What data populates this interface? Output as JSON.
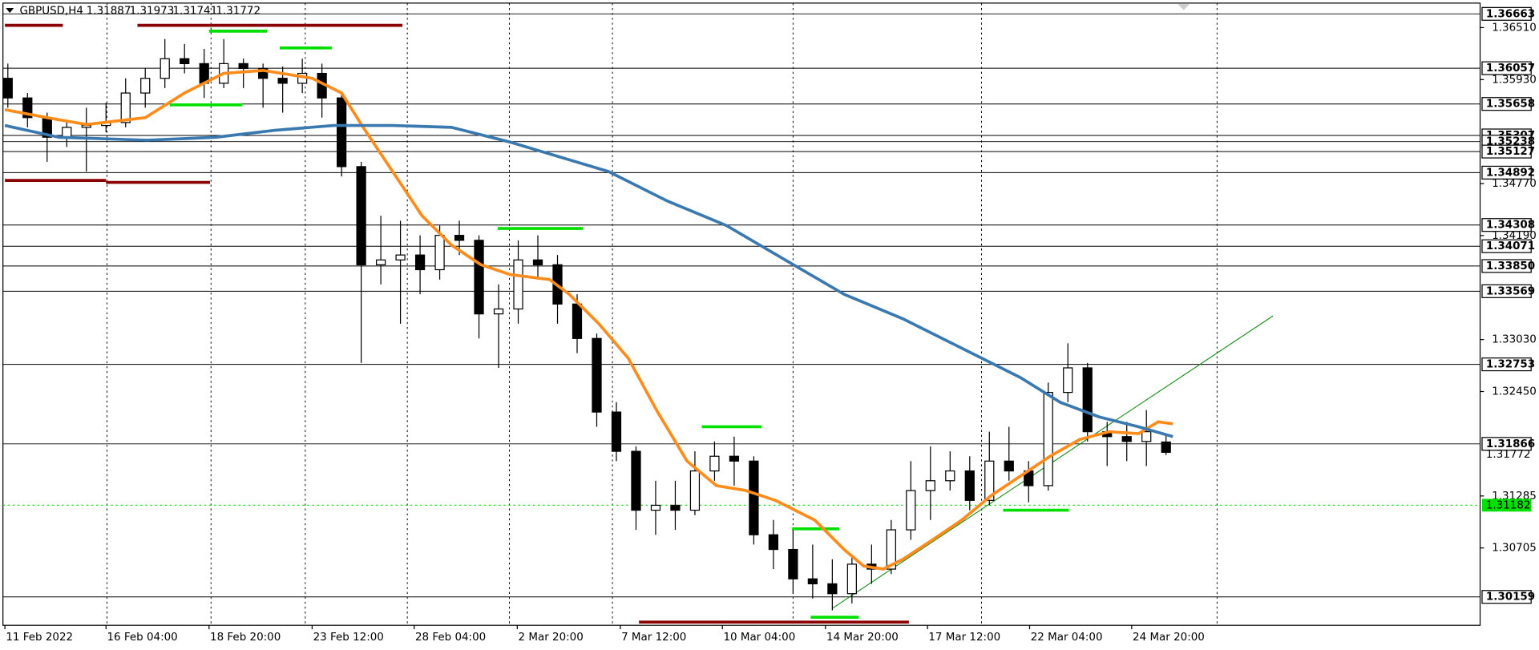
{
  "chart_data": {
    "type": "candlestick",
    "title": "GBPUSD,H4",
    "ohlc": [
      1.31887,
      1.31973,
      1.31741,
      1.31772
    ],
    "up_color": "#ffffff",
    "down_color": "#000000",
    "xlim": [
      -0.4,
      75
    ],
    "ylim": [
      1.29842,
      1.36816
    ],
    "yticks": [
      {
        "value": 1.3651,
        "label": "1.36510"
      },
      {
        "value": 1.3593,
        "label": "1.35930"
      },
      {
        "value": 1.3477,
        "label": "1.34770"
      },
      {
        "value": 1.3419,
        "label": "1.34190"
      },
      {
        "value": 1.3303,
        "label": "1.33030"
      },
      {
        "value": 1.3245,
        "label": "1.32450"
      },
      1.31285,
      1.30705
    ],
    "xticks": [
      {
        "value": -0.15,
        "label": "11 Feb 2022"
      },
      {
        "value": 5,
        "label": "16 Feb 04:00"
      },
      {
        "value": 10.25,
        "label": "18 Feb 20:00"
      },
      {
        "value": 15.5,
        "label": "23 Feb 12:00"
      },
      {
        "value": 20.7,
        "label": "28 Feb 04:00"
      },
      {
        "value": 25.95,
        "label": "2 Mar 20:00"
      },
      {
        "value": 31.2,
        "label": "7 Mar 12:00"
      },
      {
        "value": 36.4,
        "label": "10 Mar 04:00"
      },
      {
        "value": 41.65,
        "label": "14 Mar 20:00"
      },
      {
        "value": 46.85,
        "label": "17 Mar 12:00"
      },
      {
        "value": 52.05,
        "label": "22 Mar 04:00"
      },
      {
        "value": 57.25,
        "label": "24 Mar 20:00"
      }
    ],
    "vgrid": [
      5.05,
      10.35,
      15.15,
      20.35,
      25.55,
      30.8,
      40,
      49.6,
      61.6
    ],
    "candles": {
      "open": [
        1.35944,
        1.35725,
        1.35506,
        1.35287,
        1.35397,
        1.35418,
        1.35451,
        1.3578,
        1.35944,
        1.36163,
        1.36108,
        1.35889,
        1.36108,
        1.36054,
        1.35944,
        1.35889,
        1.35999,
        1.35725,
        1.34959,
        1.33864,
        1.33918,
        1.33973,
        1.33809,
        1.34192,
        1.34137,
        1.33316,
        1.33371,
        1.33918,
        1.33864,
        1.33426,
        1.33042,
        1.32221,
        1.31783,
        1.31126,
        1.31181,
        1.31126,
        1.31564,
        1.31728,
        1.31674,
        1.30852,
        1.30688,
        1.3036,
        1.30305,
        1.30195,
        1.30524,
        1.30469,
        1.30907,
        1.31345,
        1.31455,
        1.31564,
        1.31236,
        1.31674,
        1.31564,
        1.314,
        1.3244,
        1.32714,
        1.32002,
        1.31947,
        1.31893,
        1.31887
      ],
      "high": [
        1.36108,
        1.3578,
        1.35561,
        1.35451,
        1.35616,
        1.3567,
        1.35944,
        1.36054,
        1.36382,
        1.36327,
        1.36273,
        1.36382,
        1.36163,
        1.36108,
        1.36075,
        1.36163,
        1.36108,
        1.3578,
        1.35013,
        1.34411,
        1.34356,
        1.34192,
        1.34302,
        1.34356,
        1.34192,
        1.33645,
        1.34137,
        1.34192,
        1.33973,
        1.33535,
        1.33097,
        1.32331,
        1.31838,
        1.31455,
        1.31455,
        1.31783,
        1.31893,
        1.31947,
        1.31728,
        1.31017,
        1.30907,
        1.30743,
        1.30579,
        1.30633,
        1.30743,
        1.31017,
        1.31674,
        1.31838,
        1.31783,
        1.31728,
        1.32002,
        1.32057,
        1.31674,
        1.3255,
        1.32988,
        1.32769,
        1.32112,
        1.32112,
        1.32243,
        1.31973
      ],
      "low": [
        1.35616,
        1.35397,
        1.35013,
        1.35178,
        1.34904,
        1.35342,
        1.35397,
        1.35616,
        1.35835,
        1.35999,
        1.35725,
        1.35835,
        1.35835,
        1.35616,
        1.35561,
        1.3578,
        1.35506,
        1.34849,
        1.32769,
        1.33645,
        1.33207,
        1.33535,
        1.33699,
        1.33973,
        1.33042,
        1.32714,
        1.33207,
        1.33699,
        1.33207,
        1.32878,
        1.32057,
        1.31674,
        1.30907,
        1.30852,
        1.30907,
        1.31071,
        1.31455,
        1.314,
        1.30743,
        1.30469,
        1.30195,
        1.30141,
        1.30009,
        1.30086,
        1.30305,
        1.30414,
        1.30795,
        1.31017,
        1.31345,
        1.31126,
        1.31181,
        1.31455,
        1.31214,
        1.31345,
        1.32331,
        1.31893,
        1.31619,
        1.31674,
        1.31619,
        1.31741
      ],
      "close": [
        1.35725,
        1.35506,
        1.35287,
        1.35397,
        1.35418,
        1.35451,
        1.3578,
        1.35944,
        1.36163,
        1.36108,
        1.35889,
        1.36108,
        1.36054,
        1.35944,
        1.35889,
        1.35999,
        1.35725,
        1.34959,
        1.33864,
        1.33918,
        1.33973,
        1.33809,
        1.34192,
        1.34137,
        1.33316,
        1.33371,
        1.33918,
        1.33864,
        1.33426,
        1.33042,
        1.32221,
        1.31783,
        1.31126,
        1.31181,
        1.31126,
        1.31564,
        1.31728,
        1.31674,
        1.30852,
        1.30688,
        1.3036,
        1.30305,
        1.30195,
        1.30524,
        1.30469,
        1.30907,
        1.31345,
        1.31455,
        1.31564,
        1.31236,
        1.31674,
        1.31564,
        1.314,
        1.3244,
        1.32714,
        1.32002,
        1.31947,
        1.31893,
        1.32002,
        1.31772
      ]
    },
    "moving_averages": [
      {
        "color": "#ff8c1a",
        "x": [
          -0.15,
          2,
          4,
          7,
          9,
          11,
          13,
          15.5,
          17,
          18.1,
          19.6,
          21.1,
          22.6,
          24.1,
          25.6,
          27.6,
          28.6,
          30.1,
          31.6,
          33.1,
          34.6,
          36.1,
          37.6,
          39.1,
          41.1,
          42.6,
          43.6,
          44.6,
          45.6,
          47.1,
          48.6,
          50.1,
          51.6,
          53.1,
          54.6,
          56.1,
          57.6,
          58.6,
          59.35
        ],
        "values": [
          1.35594,
          1.35506,
          1.35429,
          1.35506,
          1.3578,
          1.35999,
          1.36032,
          1.35944,
          1.3578,
          1.35397,
          1.34904,
          1.34411,
          1.34083,
          1.33864,
          1.33754,
          1.33699,
          1.33535,
          1.33207,
          1.32823,
          1.32221,
          1.31674,
          1.314,
          1.31345,
          1.31236,
          1.31017,
          1.30688,
          1.30502,
          1.30469,
          1.30579,
          1.30795,
          1.31017,
          1.3129,
          1.31509,
          1.31728,
          1.31914,
          1.32002,
          1.3198,
          1.32112,
          1.3209
        ]
      },
      {
        "color": "#3a78b0",
        "x": [
          -0.15,
          2.6,
          7.1,
          10.6,
          13.6,
          16.6,
          19.6,
          22.6,
          25.6,
          28.6,
          30.6,
          33.6,
          36.6,
          39.6,
          42.6,
          45.6,
          48.6,
          51.6,
          53.6,
          55.6,
          57.6,
          59.35
        ],
        "values": [
          1.35418,
          1.35287,
          1.35254,
          1.35287,
          1.35364,
          1.35418,
          1.35418,
          1.35397,
          1.35232,
          1.35035,
          1.34904,
          1.34575,
          1.34302,
          1.33918,
          1.33535,
          1.33261,
          1.32933,
          1.32604,
          1.32331,
          1.32166,
          1.32057,
          1.31947
        ]
      }
    ],
    "trendline": {
      "color": "#1a8c1a",
      "x": [
        42,
        64.45
      ],
      "values": [
        1.30031,
        1.33294
      ]
    },
    "markers": [
      {
        "color": "#00e000",
        "x": [
          10.25,
          13.2
        ],
        "value": 1.3647
      },
      {
        "color": "#00e000",
        "x": [
          13.85,
          16.5
        ],
        "value": 1.36283
      },
      {
        "color": "#00e000",
        "x": [
          8.25,
          11.95
        ],
        "value": 1.35648
      },
      {
        "color": "#00e000",
        "x": [
          24.95,
          29.3
        ],
        "value": 1.34269
      },
      {
        "color": "#00e000",
        "x": [
          35.35,
          38.4
        ],
        "value": 1.32057
      },
      {
        "color": "#00e000",
        "x": [
          39.95,
          42.35
        ],
        "value": 1.30918
      },
      {
        "color": "#00e000",
        "x": [
          40.9,
          43.35
        ],
        "value": 1.29932
      },
      {
        "color": "#00e000",
        "x": [
          50.7,
          54.05
        ],
        "value": 1.31126
      },
      {
        "color": "#8b0000",
        "x": [
          -0.15,
          2.8
        ],
        "value": 1.36535
      },
      {
        "color": "#8b0000",
        "x": [
          6.6,
          20.1
        ],
        "value": 1.36535
      },
      {
        "color": "#8b0000",
        "x": [
          -0.15,
          5
        ],
        "value": 1.34805
      },
      {
        "color": "#8b0000",
        "x": [
          5,
          10.3
        ],
        "value": 1.34783
      },
      {
        "color": "#8b0000",
        "x": [
          32.15,
          45.9
        ],
        "value": 1.29878
      }
    ],
    "levels": [
      1.36663,
      1.36057,
      1.35658,
      1.35307,
      1.35238,
      1.35127,
      1.34892,
      1.34308,
      1.34071,
      {
        "value": 1.3385,
        "label": "1.33850"
      },
      1.33569,
      1.32753,
      1.31866,
      1.30159
    ],
    "price_label": 1.31772,
    "green_level": {
      "value": 1.31182,
      "color": "#00e000"
    }
  }
}
